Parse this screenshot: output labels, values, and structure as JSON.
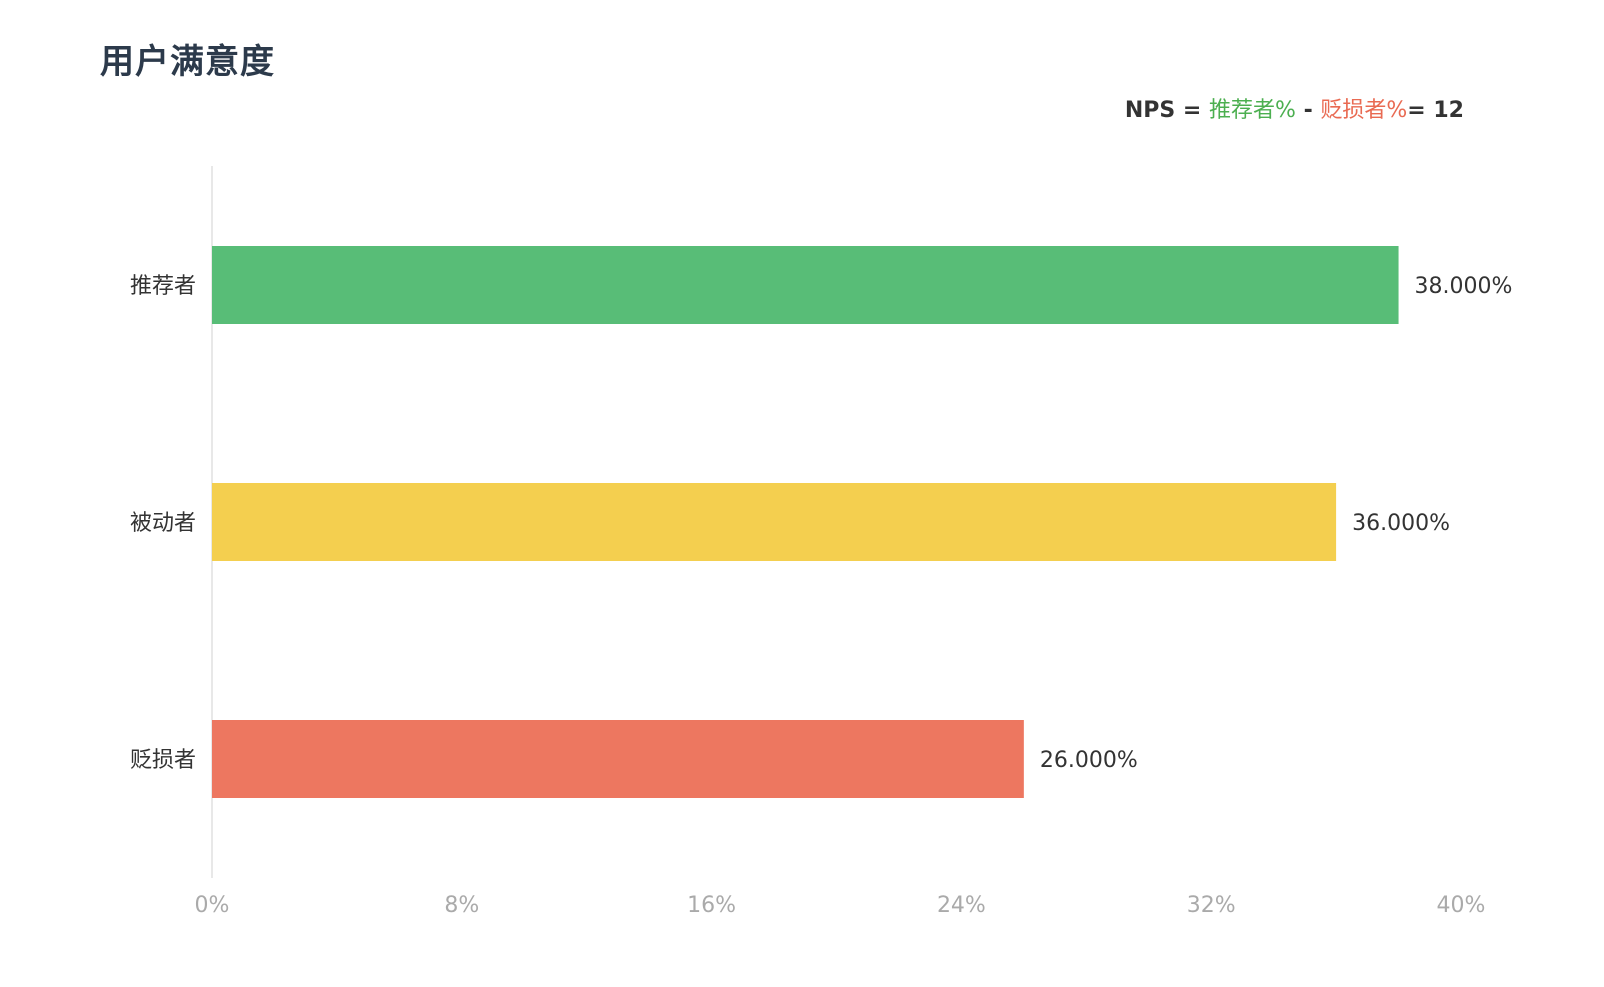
{
  "chart_data": {
    "type": "bar",
    "orientation": "horizontal",
    "title": "用户满意度",
    "categories": [
      "推荐者",
      "被动者",
      "贬损者"
    ],
    "values": [
      38,
      36,
      26
    ],
    "value_labels": [
      "38.000%",
      "36.000%",
      "26.000%"
    ],
    "colors": [
      "#58bd77",
      "#f4cf4f",
      "#ed7760"
    ],
    "xlim": [
      0,
      40
    ],
    "x_ticks": [
      0,
      8,
      16,
      24,
      32,
      40
    ],
    "x_tick_labels": [
      "0%",
      "8%",
      "16%",
      "24%",
      "32%",
      "40%"
    ],
    "grid": false,
    "legend": "none"
  },
  "nps": {
    "label": "NPS",
    "eq1": " = ",
    "promoter_term": "推荐者%",
    "minus": " - ",
    "detractor_term": "贬损者%",
    "eq2": "= ",
    "value": "12"
  }
}
